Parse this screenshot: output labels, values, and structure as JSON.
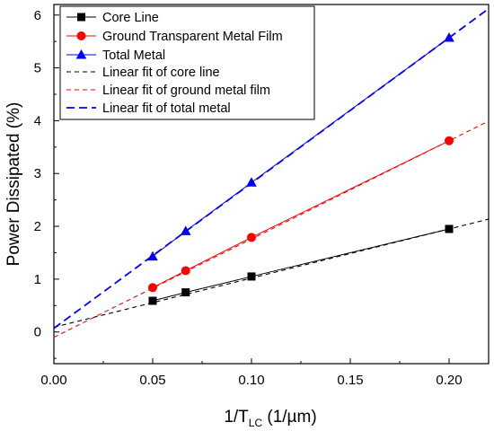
{
  "chart_data": {
    "type": "scatter",
    "x": [
      0.05,
      0.0667,
      0.1,
      0.2
    ],
    "xlim": [
      0,
      0.22
    ],
    "ylim": [
      -0.6,
      6.2
    ],
    "xticks": [
      "0.00",
      "0.05",
      "0.10",
      "0.15",
      "0.20"
    ],
    "xtick_values": [
      0,
      0.05,
      0.1,
      0.15,
      0.2
    ],
    "yticks": [
      "0",
      "1",
      "2",
      "3",
      "4",
      "5",
      "6"
    ],
    "ytick_values": [
      0,
      1,
      2,
      3,
      4,
      5,
      6
    ],
    "xlabel": {
      "main": "1/T",
      "sub": "LC",
      "rest": " (1/µm)"
    },
    "ylabel": "Power Dissipated (%)",
    "grid": false,
    "legend_position": "top-left",
    "series": [
      {
        "name": "Core Line",
        "marker": "square",
        "color": "#000000",
        "values": [
          0.59,
          0.75,
          1.05,
          1.95
        ]
      },
      {
        "name": "Ground Transparent Metal Film",
        "marker": "circle",
        "color": "#ff0000",
        "values": [
          0.84,
          1.16,
          1.79,
          3.62
        ]
      },
      {
        "name": "Total Metal",
        "marker": "triangle",
        "color": "#0000ff",
        "values": [
          1.43,
          1.91,
          2.83,
          5.57
        ]
      }
    ],
    "fits": [
      {
        "name": "Linear fit of core line",
        "color": "#000000",
        "dash": "dash",
        "intercept": 0.09,
        "slope": 9.3
      },
      {
        "name": "Linear fit of ground metal film",
        "color": "#ff0000",
        "dash": "dash",
        "intercept": -0.1,
        "slope": 18.6
      },
      {
        "name": "Linear fit of total metal",
        "color": "#0000ff",
        "dash": "long-dash",
        "intercept": 0.07,
        "slope": 27.5
      }
    ]
  }
}
